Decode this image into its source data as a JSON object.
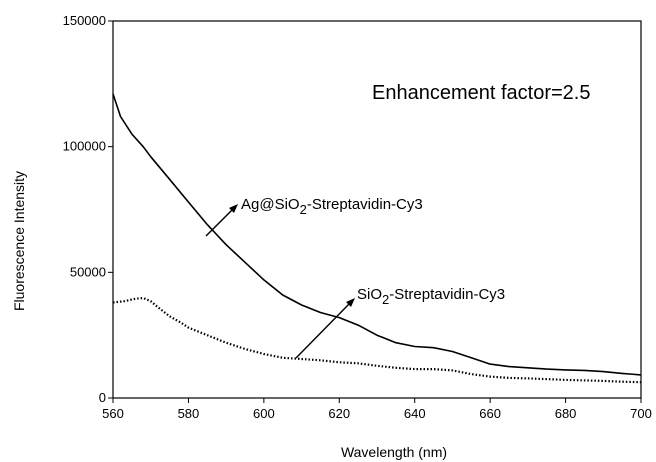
{
  "chart_data": {
    "type": "line",
    "title": "",
    "xlabel": "Wavelength (nm)",
    "ylabel": "Fluorescence Intensity",
    "xlim": [
      560,
      700
    ],
    "ylim": [
      0,
      150000
    ],
    "x_ticks": [
      560,
      580,
      600,
      620,
      640,
      660,
      680,
      700
    ],
    "y_ticks": [
      0,
      50000,
      100000,
      150000
    ],
    "grid": false,
    "legend": "none",
    "series": [
      {
        "name": "Ag@SiO2-Streptavidin-Cy3",
        "style": "solid",
        "color": "#000000",
        "x": [
          560,
          562,
          565,
          568,
          570,
          575,
          580,
          585,
          590,
          595,
          600,
          605,
          610,
          615,
          620,
          625,
          630,
          635,
          640,
          645,
          650,
          655,
          660,
          665,
          670,
          675,
          680,
          685,
          690,
          695,
          700
        ],
        "y": [
          121000,
          112000,
          105000,
          100000,
          96000,
          87000,
          78000,
          69000,
          61000,
          54000,
          47000,
          41000,
          37000,
          34000,
          32000,
          29000,
          25000,
          22000,
          20500,
          20000,
          18500,
          16000,
          13500,
          12500,
          12000,
          11500,
          11200,
          11000,
          10500,
          9800,
          9200
        ]
      },
      {
        "name": "SiO2-Streptavidin-Cy3",
        "style": "dotted",
        "color": "#000000",
        "x": [
          560,
          563,
          566,
          568,
          570,
          572,
          575,
          578,
          580,
          585,
          590,
          595,
          600,
          605,
          610,
          615,
          620,
          625,
          630,
          635,
          640,
          645,
          650,
          655,
          660,
          665,
          670,
          675,
          680,
          685,
          690,
          695,
          700
        ],
        "y": [
          38000,
          38500,
          39500,
          39800,
          38500,
          36000,
          32500,
          30000,
          28000,
          25000,
          22000,
          19500,
          17500,
          16000,
          15500,
          15000,
          14200,
          13800,
          12800,
          12000,
          11500,
          11500,
          11000,
          9500,
          8500,
          8000,
          7800,
          7500,
          7200,
          7000,
          6800,
          6500,
          6300
        ]
      }
    ],
    "annotations": {
      "enhancement": "Enhancement factor=2.5",
      "ag_label": {
        "prefix": "Ag@SiO",
        "sub": "2",
        "suffix": "-Streptavidin-Cy3"
      },
      "sio2_label": {
        "prefix": "SiO",
        "sub": "2",
        "suffix": "-Streptavidin-Cy3"
      }
    }
  }
}
